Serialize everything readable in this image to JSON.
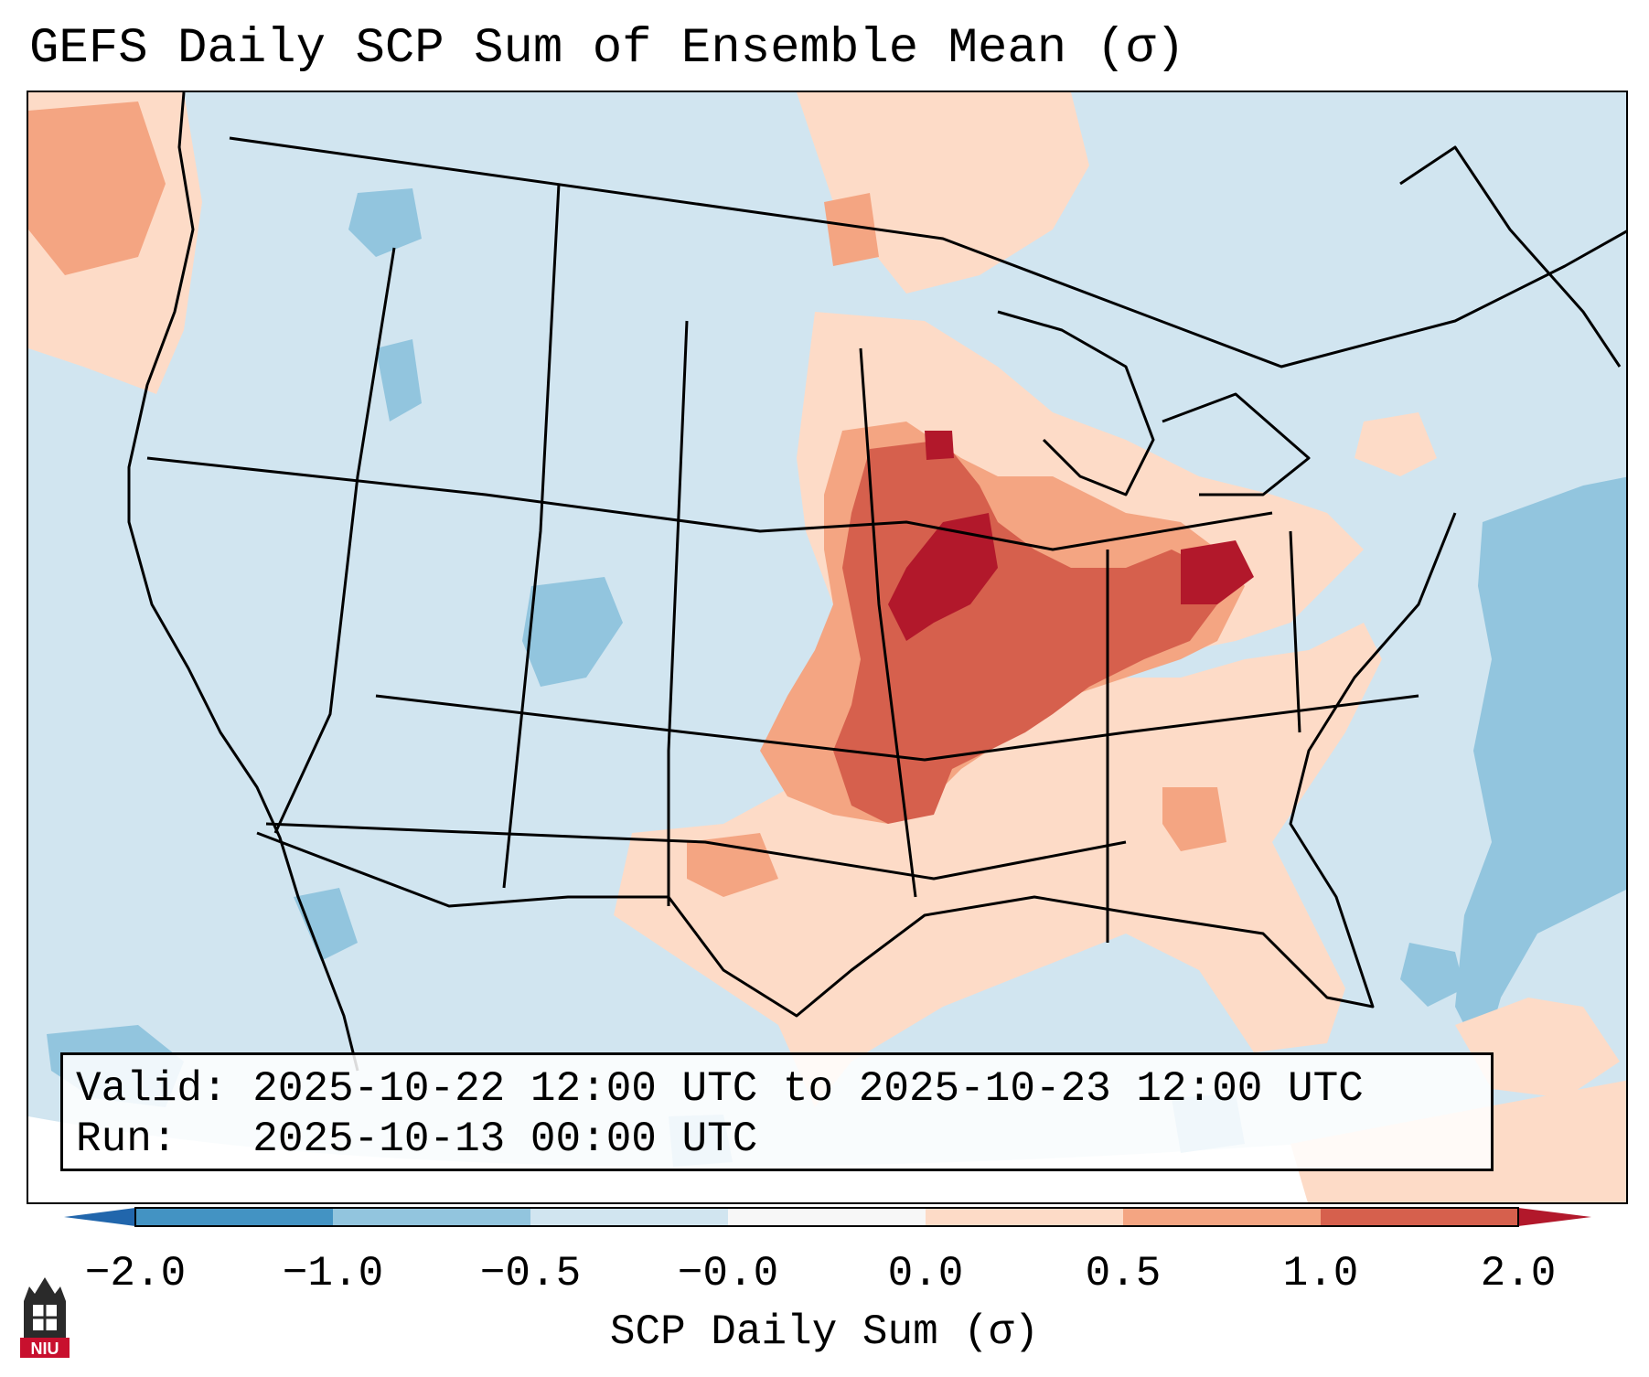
{
  "title": "GEFS Daily SCP Sum of Ensemble Mean (σ)",
  "info": {
    "valid_line": "Valid: 2025-10-22 12:00 UTC to 2025-10-23 12:00 UTC",
    "run_line": "Run:   2025-10-13 00:00 UTC"
  },
  "colorbar": {
    "label": "SCP Daily Sum (σ)",
    "ticks": [
      "−2.0",
      "−1.0",
      "−0.5",
      "−0.0",
      "0.0",
      "0.5",
      "1.0",
      "2.0"
    ],
    "bins": [
      {
        "from": -2.0,
        "to": -1.0,
        "color": "#4393c3"
      },
      {
        "from": -1.0,
        "to": -0.5,
        "color": "#92c5de"
      },
      {
        "from": -0.5,
        "to": -0.0,
        "color": "#d1e5f0"
      },
      {
        "from": -0.0,
        "to": 0.0,
        "color": "#f7f7f7"
      },
      {
        "from": 0.0,
        "to": 0.5,
        "color": "#fddbc7"
      },
      {
        "from": 0.5,
        "to": 1.0,
        "color": "#f4a582"
      },
      {
        "from": 1.0,
        "to": 2.0,
        "color": "#d6604d"
      }
    ],
    "under_color": "#2166ac",
    "over_color": "#b2182b"
  },
  "logo": {
    "text": "NIU",
    "color": "#c8102e"
  },
  "map": {
    "background_color": "#d1e5f0",
    "regions": [
      {
        "name": "central-us-high-scp",
        "level": "1.0 to 2.0"
      },
      {
        "name": "ohio-valley-high-scp",
        "level": "1.0 to 2.0"
      },
      {
        "name": "plains-moderate-scp",
        "level": "0.5 to 1.0"
      },
      {
        "name": "southeast-low-scp",
        "level": "0.0 to 0.5"
      },
      {
        "name": "atlantic-negative-anomaly",
        "level": "-1.0 to -0.5"
      }
    ]
  }
}
